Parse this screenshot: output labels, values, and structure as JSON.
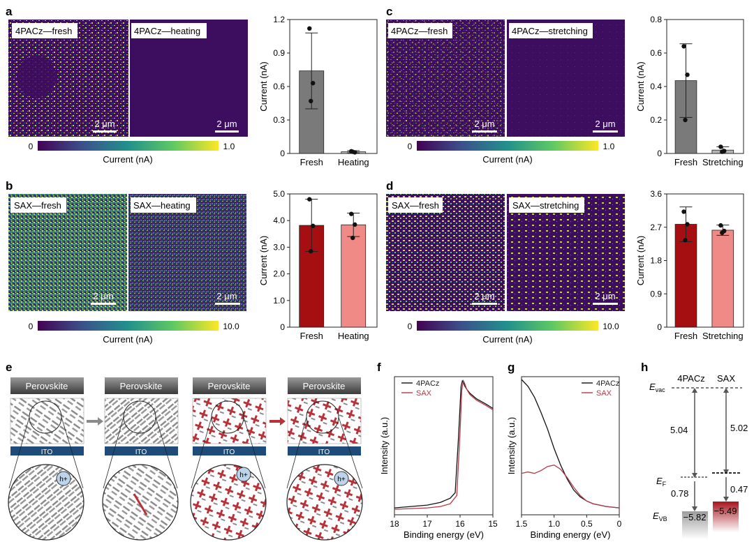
{
  "panel_letters": {
    "a": "a",
    "b": "b",
    "c": "c",
    "d": "d",
    "e": "e",
    "f": "f",
    "g": "g",
    "h": "h"
  },
  "colors": {
    "map_dark": "#3d0d5f",
    "fresh_gray": "#7a7a7a",
    "fresh_red": "#a60f12",
    "treated_pink": "#f08a86",
    "ito_blue": "#1e4b7a",
    "sax_red": "#b01e24",
    "line_sax": "#b23a48",
    "line_4pacz": "#111111"
  },
  "maps": {
    "a": {
      "left_label": "4PACz—fresh",
      "right_label": "4PACz—heating",
      "scalebar": "2 μm",
      "cb_min": "0",
      "cb_max": "1.0",
      "cb_label": "Current (nA)"
    },
    "b": {
      "left_label": "SAX—fresh",
      "right_label": "SAX—heating",
      "scalebar": "2 μm",
      "cb_min": "0",
      "cb_max": "10.0",
      "cb_label": "Current (nA)"
    },
    "c": {
      "left_label": "4PACz—fresh",
      "right_label": "4PACz—stretching",
      "scalebar": "2 μm",
      "cb_min": "0",
      "cb_max": "1.0",
      "cb_label": "Current (nA)"
    },
    "d": {
      "left_label": "SAX—fresh",
      "right_label": "SAX—stretching",
      "scalebar": "2 μm",
      "cb_min": "0",
      "cb_max": "10.0",
      "cb_label": "Current (nA)"
    }
  },
  "chart_data": [
    {
      "id": "a",
      "type": "bar",
      "categories": [
        "Fresh",
        "Heating"
      ],
      "values": [
        0.74,
        0.015
      ],
      "errors": [
        0.34,
        0.01
      ],
      "points": [
        [
          1.12,
          0.63,
          0.47
        ],
        [
          0.02,
          0.01,
          0.015
        ]
      ],
      "ylabel": "Current (nA)",
      "ylim": [
        0,
        1.2
      ],
      "yticks": [
        "0",
        "0.3",
        "0.6",
        "0.9",
        "1.2"
      ]
    },
    {
      "id": "b",
      "type": "bar",
      "categories": [
        "Fresh",
        "Heating"
      ],
      "values": [
        3.82,
        3.84
      ],
      "errors": [
        0.98,
        0.44
      ],
      "points": [
        [
          4.8,
          3.8,
          2.85
        ],
        [
          4.25,
          3.85,
          3.35
        ]
      ],
      "ylabel": "Current (nA)",
      "ylim": [
        0,
        5.0
      ],
      "yticks": [
        "0",
        "1.0",
        "2.0",
        "3.0",
        "4.0",
        "5.0"
      ]
    },
    {
      "id": "c",
      "type": "bar",
      "categories": [
        "Fresh",
        "Stretching"
      ],
      "values": [
        0.435,
        0.02
      ],
      "errors": [
        0.22,
        0.02
      ],
      "points": [
        [
          0.64,
          0.47,
          0.2
        ],
        [
          0.04,
          0.015,
          0.01
        ]
      ],
      "ylabel": "Current (nA)",
      "ylim": [
        0,
        0.8
      ],
      "yticks": [
        "0",
        "0.2",
        "0.4",
        "0.6",
        "0.8"
      ]
    },
    {
      "id": "d",
      "type": "bar",
      "categories": [
        "Fresh",
        "Stretching"
      ],
      "values": [
        2.78,
        2.62
      ],
      "errors": [
        0.47,
        0.14
      ],
      "points": [
        [
          3.12,
          2.78,
          2.35
        ],
        [
          2.75,
          2.6,
          2.55
        ]
      ],
      "ylabel": "Current (nA)",
      "ylim": [
        0,
        3.6
      ],
      "yticks": [
        "0",
        "0.9",
        "1.8",
        "2.7",
        "3.6"
      ]
    },
    {
      "id": "f",
      "type": "line",
      "title": "",
      "xlabel": "Binding energy (eV)",
      "ylabel": "Intensity (a.u.)",
      "xlim": [
        18,
        15
      ],
      "xticks": [
        "18",
        "17",
        "16",
        "15"
      ],
      "series": [
        {
          "name": "4PACz",
          "x": [
            18,
            17.5,
            17,
            16.6,
            16.3,
            16.15,
            16.05,
            15.97,
            15.93,
            15.9,
            15.85,
            15.8,
            15.7,
            15.5,
            15.2,
            15
          ],
          "y": [
            0.05,
            0.06,
            0.07,
            0.09,
            0.12,
            0.16,
            0.55,
            0.93,
            0.97,
            0.96,
            0.93,
            0.91,
            0.88,
            0.84,
            0.8,
            0.77
          ]
        },
        {
          "name": "SAX",
          "x": [
            18,
            17.5,
            17,
            16.6,
            16.3,
            16.1,
            16.0,
            15.95,
            15.9,
            15.86,
            15.8,
            15.7,
            15.5,
            15.2,
            15
          ],
          "y": [
            0.04,
            0.045,
            0.05,
            0.06,
            0.08,
            0.14,
            0.6,
            0.9,
            0.97,
            0.95,
            0.91,
            0.87,
            0.83,
            0.79,
            0.76
          ]
        }
      ]
    },
    {
      "id": "g",
      "type": "line",
      "title": "",
      "xlabel": "Binding energy (eV)",
      "ylabel": "Intensity (a.u.)",
      "xlim": [
        1.5,
        0
      ],
      "xticks": [
        "1.5",
        "1.0",
        "0.5",
        "0"
      ],
      "series": [
        {
          "name": "4PACz",
          "x": [
            1.5,
            1.4,
            1.3,
            1.2,
            1.1,
            1.0,
            0.9,
            0.8,
            0.7,
            0.6,
            0.5,
            0.4,
            0.3,
            0.2,
            0.1,
            0
          ],
          "y": [
            0.98,
            0.93,
            0.85,
            0.74,
            0.62,
            0.48,
            0.36,
            0.26,
            0.18,
            0.13,
            0.1,
            0.08,
            0.07,
            0.06,
            0.055,
            0.05
          ]
        },
        {
          "name": "SAX",
          "x": [
            1.5,
            1.4,
            1.3,
            1.2,
            1.1,
            1.0,
            0.9,
            0.8,
            0.7,
            0.6,
            0.5,
            0.4,
            0.3,
            0.2,
            0.1,
            0
          ],
          "y": [
            0.3,
            0.31,
            0.3,
            0.32,
            0.35,
            0.36,
            0.33,
            0.27,
            0.2,
            0.14,
            0.1,
            0.08,
            0.07,
            0.06,
            0.055,
            0.05
          ]
        }
      ]
    }
  ],
  "schematic": {
    "perovskite_label": "Perovskite",
    "ito_label": "ITO",
    "hole_label": "h+"
  },
  "energy": {
    "col1": "4PACz",
    "col2": "SAX",
    "evac": "E",
    "evac_sub": "vac",
    "ef": "E",
    "ef_sub": "F",
    "evb": "E",
    "evb_sub": "VB",
    "gap1": "5.04",
    "gap2": "5.02",
    "ef1": "0.78",
    "ef2": "0.47",
    "vb1": "−5.82",
    "vb2": "−5.49"
  }
}
